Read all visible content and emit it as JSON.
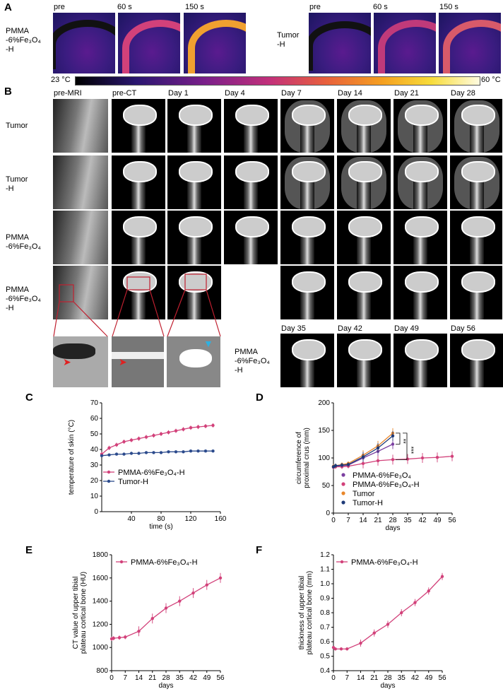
{
  "panelA": {
    "letter": "A",
    "row1_label": "PMMA\n-6%Fe₃O₄\n-H",
    "row2_label": "Tumor\n-H",
    "time_labels": [
      "pre",
      "60 s",
      "150 s"
    ],
    "scale_min": "23 °C",
    "scale_max": "60 °C"
  },
  "panelB": {
    "letter": "B",
    "columns": [
      "pre-MRI",
      "pre-CT",
      "Day 1",
      "Day 4",
      "Day 7",
      "Day 14",
      "Day 21",
      "Day 28"
    ],
    "rows": [
      "Tumor",
      "Tumor\n-H",
      "PMMA\n-6%Fe₃O₄",
      "PMMA\n-6%Fe₃O₄\n-H"
    ],
    "extra_label": "PMMA\n-6%Fe₃O₄\n-H",
    "extra_days": [
      "Day 35",
      "Day 42",
      "Day 49",
      "Day 56"
    ]
  },
  "panelC": {
    "letter": "C"
  },
  "panelD": {
    "letter": "D"
  },
  "panelE": {
    "letter": "E"
  },
  "panelF": {
    "letter": "F"
  },
  "chart_data": [
    {
      "type": "line",
      "xlabel": "time (s)",
      "ylabel": "temperature of skin (°C)",
      "xlim": [
        0,
        160
      ],
      "ylim": [
        0,
        70
      ],
      "xticks": [
        40,
        80,
        120,
        160
      ],
      "yticks": [
        0,
        10,
        20,
        30,
        40,
        50,
        60,
        70
      ],
      "legend_position": "bottom-left",
      "series": [
        {
          "name": "PMMA-6%Fe₃O₄-H",
          "color": "#d2417a",
          "x": [
            0,
            10,
            20,
            30,
            40,
            50,
            60,
            70,
            80,
            90,
            100,
            110,
            120,
            130,
            140,
            150
          ],
          "y": [
            37,
            41,
            43,
            45,
            46,
            47,
            48,
            49,
            50,
            51,
            52,
            53,
            54,
            54.5,
            55,
            55.5
          ]
        },
        {
          "name": "Tumor-H",
          "color": "#2b4a8c",
          "x": [
            0,
            10,
            20,
            30,
            40,
            50,
            60,
            70,
            80,
            90,
            100,
            110,
            120,
            130,
            140,
            150
          ],
          "y": [
            36,
            36.5,
            37,
            37,
            37.5,
            37.5,
            38,
            38,
            38,
            38.5,
            38.5,
            38.5,
            39,
            39,
            39,
            39
          ]
        }
      ]
    },
    {
      "type": "line",
      "xlabel": "days",
      "ylabel": "circumference of proximal crus (mm)",
      "xlim": [
        0,
        56
      ],
      "ylim": [
        0,
        200
      ],
      "xticks": [
        0,
        7,
        14,
        21,
        28,
        35,
        42,
        49,
        56
      ],
      "yticks": [
        0,
        50,
        100,
        150,
        200
      ],
      "legend_position": "bottom-left",
      "annotations": [
        "**",
        "**",
        "***"
      ],
      "series": [
        {
          "name": "PMMA-6%Fe₃O₄",
          "color": "#7b3fa0",
          "x": [
            0,
            1,
            4,
            7,
            14,
            21,
            28
          ],
          "y": [
            84,
            85,
            86,
            87,
            100,
            112,
            125
          ]
        },
        {
          "name": "PMMA-6%Fe₃O₄-H",
          "color": "#d2417a",
          "x": [
            0,
            1,
            4,
            7,
            14,
            21,
            28,
            35,
            42,
            49,
            56
          ],
          "y": [
            83,
            84,
            84,
            85,
            90,
            95,
            97,
            98,
            100,
            101,
            103
          ]
        },
        {
          "name": "Tumor",
          "color": "#e8862a",
          "x": [
            0,
            1,
            4,
            7,
            14,
            21,
            28
          ],
          "y": [
            85,
            86,
            88,
            90,
            105,
            122,
            145
          ]
        },
        {
          "name": "Tumor-H",
          "color": "#1e3a78",
          "x": [
            0,
            1,
            4,
            7,
            14,
            21,
            28
          ],
          "y": [
            84,
            86,
            87,
            88,
            102,
            118,
            140
          ]
        }
      ]
    },
    {
      "type": "line",
      "xlabel": "days",
      "ylabel": "CT value of upper tibial plateau cortical bone (HU)",
      "xlim": [
        0,
        56
      ],
      "ylim": [
        800,
        1800
      ],
      "xticks": [
        0,
        7,
        14,
        21,
        28,
        35,
        42,
        49,
        56
      ],
      "yticks": [
        800,
        1000,
        1200,
        1400,
        1600,
        1800
      ],
      "legend_position": "top-left",
      "series": [
        {
          "name": "PMMA-6%Fe₃O₄-H",
          "color": "#d2417a",
          "x": [
            0,
            1,
            4,
            7,
            14,
            21,
            28,
            35,
            42,
            49,
            56
          ],
          "y": [
            1075,
            1080,
            1085,
            1090,
            1140,
            1250,
            1340,
            1400,
            1470,
            1540,
            1600
          ]
        }
      ]
    },
    {
      "type": "line",
      "xlabel": "days",
      "ylabel": "thickness of upper tibial plateau cortical bone (mm)",
      "xlim": [
        0,
        56
      ],
      "ylim": [
        0.4,
        1.2
      ],
      "xticks": [
        0,
        7,
        14,
        21,
        28,
        35,
        42,
        49,
        56
      ],
      "yticks": [
        0.4,
        0.5,
        0.6,
        0.7,
        0.8,
        0.9,
        1.0,
        1.1,
        1.2
      ],
      "legend_position": "top-left",
      "series": [
        {
          "name": "PMMA-6%Fe₃O₄-H",
          "color": "#d2417a",
          "x": [
            0,
            1,
            4,
            7,
            14,
            21,
            28,
            35,
            42,
            49,
            56
          ],
          "y": [
            0.56,
            0.55,
            0.55,
            0.55,
            0.59,
            0.66,
            0.72,
            0.8,
            0.87,
            0.95,
            1.05
          ]
        }
      ]
    }
  ]
}
